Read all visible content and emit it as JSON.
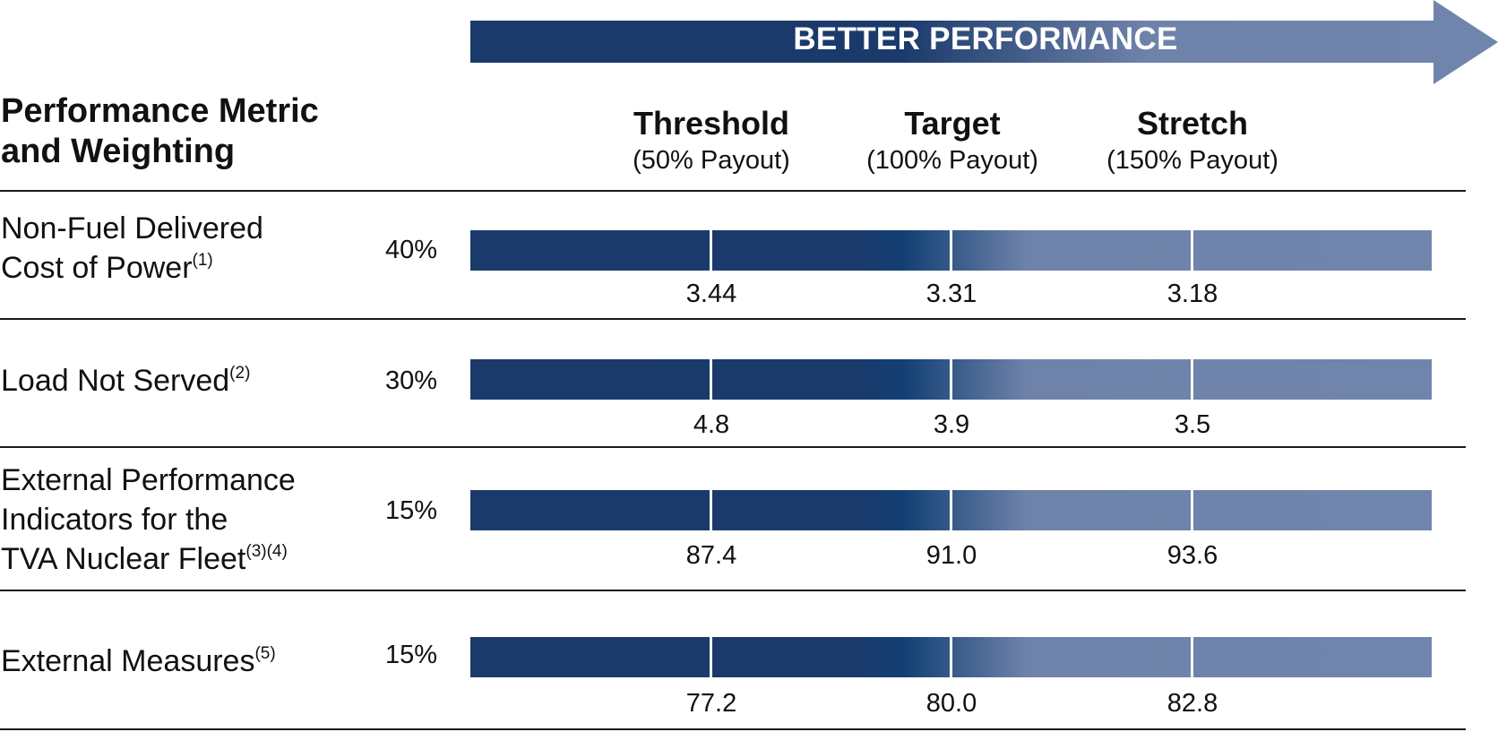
{
  "banner": {
    "label": "BETTER PERFORMANCE",
    "color_dark": "#1b3a6c",
    "color_light": "#7085ac"
  },
  "header": {
    "title_line1": "Performance Metric",
    "title_line2": "and Weighting",
    "levels": [
      {
        "name": "Threshold",
        "payout": "(50% Payout)"
      },
      {
        "name": "Target",
        "payout": "(100% Payout)"
      },
      {
        "name": "Stretch",
        "payout": "(150% Payout)"
      }
    ]
  },
  "metrics": [
    {
      "line1": "Non-Fuel Delivered",
      "line2": "Cost of Power",
      "note": "(1)",
      "weight": "40%",
      "values": [
        "3.44",
        "3.31",
        "3.18"
      ]
    },
    {
      "line1": "Load Not Served",
      "note": "(2)",
      "weight": "30%",
      "values": [
        "4.8",
        "3.9",
        "3.5"
      ]
    },
    {
      "line1": "External Performance",
      "line2": "Indicators for the",
      "line3": "TVA Nuclear Fleet",
      "note": "(3)(4)",
      "weight": "15%",
      "values": [
        "87.4",
        "91.0",
        "93.6"
      ]
    },
    {
      "line1": "External Measures",
      "note": "(5)",
      "weight": "15%",
      "values": [
        "77.2",
        "80.0",
        "82.8"
      ]
    }
  ]
}
